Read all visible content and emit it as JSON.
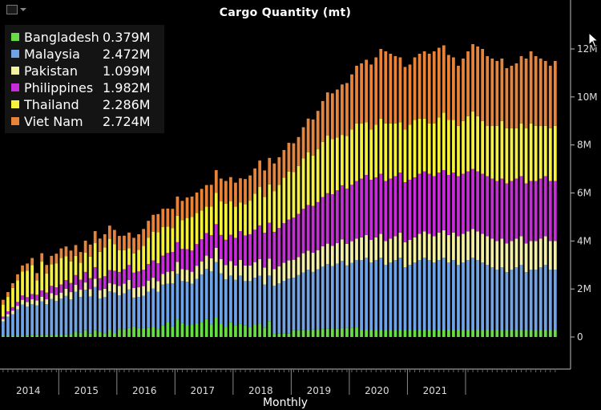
{
  "title": "Cargo Quantity (mt)",
  "icons": {
    "toolbar": "line-chart-icon",
    "dropdown": "chevron-down-icon",
    "cursor": "mouse-pointer-icon"
  },
  "chart_data": {
    "type": "bar",
    "stacked": true,
    "title": "Cargo Quantity (mt)",
    "xlabel": "Monthly",
    "ylabel": "",
    "ylim": [
      -1300000,
      13700000
    ],
    "y_axis_position": "right",
    "y_ticks": [
      0,
      2000000,
      4000000,
      6000000,
      8000000,
      10000000,
      12000000
    ],
    "y_tick_labels": [
      "0",
      "2M",
      "4M",
      "6M",
      "8M",
      "10M",
      "12M"
    ],
    "x_year_labels": [
      "2014",
      "2015",
      "2016",
      "2017",
      "2018",
      "2019",
      "2020",
      "2021"
    ],
    "x_start": "2014-01",
    "legend_position": "top-left",
    "grid": false,
    "series": [
      {
        "name": "Bangladesh",
        "color": "#66dd44",
        "legend_value": "0.379M",
        "values": [
          0.05,
          0.05,
          0.05,
          0.05,
          0.05,
          0.06,
          0.07,
          0.07,
          0.08,
          0.07,
          0.08,
          0.1,
          0.1,
          0.11,
          0.12,
          0.23,
          0.17,
          0.27,
          0.14,
          0.28,
          0.2,
          0.16,
          0.3,
          0.15,
          0.33,
          0.32,
          0.38,
          0.44,
          0.37,
          0.37,
          0.39,
          0.42,
          0.33,
          0.48,
          0.62,
          0.44,
          0.73,
          0.58,
          0.5,
          0.52,
          0.57,
          0.6,
          0.74,
          0.53,
          0.82,
          0.55,
          0.4,
          0.61,
          0.48,
          0.56,
          0.48,
          0.43,
          0.52,
          0.55,
          0.39,
          0.66,
          0.13,
          0.14,
          0.14,
          0.14,
          0.27,
          0.28,
          0.29,
          0.3,
          0.31,
          0.32,
          0.33,
          0.34,
          0.35,
          0.36,
          0.37,
          0.38,
          0.39,
          0.4,
          0.3,
          0.3,
          0.3,
          0.3,
          0.3,
          0.3,
          0.3,
          0.3,
          0.3,
          0.3,
          0.3,
          0.3,
          0.3,
          0.3,
          0.3,
          0.3,
          0.3,
          0.3,
          0.3,
          0.3,
          0.3,
          0.3,
          0.3,
          0.3,
          0.3,
          0.3,
          0.3,
          0.3,
          0.3,
          0.3,
          0.3,
          0.3,
          0.3,
          0.3,
          0.3,
          0.3,
          0.3,
          0.3,
          0.3,
          0.3,
          0.3
        ]
      },
      {
        "name": "Malaysia",
        "color": "#6fa3e6",
        "legend_value": "2.472M",
        "values": [
          0.6,
          0.8,
          0.9,
          1.1,
          1.3,
          1.2,
          1.3,
          1.25,
          1.4,
          1.3,
          1.5,
          1.4,
          1.5,
          1.6,
          1.45,
          1.65,
          1.5,
          1.7,
          1.55,
          1.8,
          1.4,
          1.5,
          1.6,
          1.7,
          1.4,
          1.5,
          1.6,
          1.2,
          1.3,
          1.35,
          1.5,
          1.6,
          1.55,
          1.7,
          1.6,
          1.8,
          1.9,
          1.75,
          1.8,
          1.7,
          1.85,
          2.0,
          2.1,
          2.2,
          2.3,
          2.1,
          2.0,
          1.95,
          1.9,
          2.0,
          1.85,
          1.9,
          1.95,
          2.0,
          1.8,
          1.9,
          2.0,
          2.1,
          2.2,
          2.3,
          2.2,
          2.3,
          2.4,
          2.5,
          2.4,
          2.5,
          2.6,
          2.7,
          2.6,
          2.7,
          2.8,
          2.6,
          2.7,
          2.8,
          2.9,
          3.0,
          2.8,
          2.9,
          3.0,
          2.7,
          2.8,
          2.9,
          3.0,
          2.6,
          2.7,
          2.8,
          2.9,
          3.0,
          2.9,
          2.8,
          2.9,
          3.0,
          2.8,
          2.9,
          2.7,
          2.8,
          2.9,
          3.0,
          2.9,
          2.8,
          2.7,
          2.6,
          2.5,
          2.6,
          2.4,
          2.5,
          2.6,
          2.7,
          2.4,
          2.5,
          2.5,
          2.6,
          2.7,
          2.5,
          2.5
        ]
      },
      {
        "name": "Pakistan",
        "color": "#f5f0a0",
        "legend_value": "1.099M",
        "values": [
          0.1,
          0.1,
          0.15,
          0.15,
          0.2,
          0.2,
          0.2,
          0.2,
          0.2,
          0.2,
          0.25,
          0.25,
          0.25,
          0.3,
          0.3,
          0.3,
          0.3,
          0.3,
          0.3,
          0.35,
          0.35,
          0.35,
          0.35,
          0.35,
          0.4,
          0.4,
          0.4,
          0.4,
          0.4,
          0.4,
          0.45,
          0.45,
          0.45,
          0.45,
          0.5,
          0.5,
          0.5,
          0.5,
          0.5,
          0.5,
          0.55,
          0.55,
          0.55,
          0.55,
          0.6,
          0.6,
          0.6,
          0.6,
          0.6,
          0.65,
          0.65,
          0.65,
          0.65,
          0.7,
          0.7,
          0.7,
          0.7,
          0.7,
          0.75,
          0.75,
          0.75,
          0.75,
          0.8,
          0.8,
          0.8,
          0.8,
          0.85,
          0.85,
          0.85,
          0.85,
          0.9,
          0.9,
          0.9,
          0.9,
          0.95,
          0.95,
          0.95,
          0.95,
          1.0,
          1.0,
          1.0,
          1.0,
          1.05,
          1.05,
          1.05,
          1.05,
          1.1,
          1.1,
          1.1,
          1.1,
          1.15,
          1.15,
          1.15,
          1.15,
          1.2,
          1.2,
          1.2,
          1.2,
          1.2,
          1.2,
          1.2,
          1.2,
          1.2,
          1.2,
          1.2,
          1.2,
          1.2,
          1.2,
          1.2,
          1.2,
          1.2,
          1.2,
          1.2,
          1.2,
          1.2
        ]
      },
      {
        "name": "Philippines",
        "color": "#c82bd8",
        "legend_value": "1.982M",
        "values": [
          0.1,
          0.12,
          0.14,
          0.16,
          0.18,
          0.2,
          0.22,
          0.24,
          0.26,
          0.28,
          0.3,
          0.32,
          0.34,
          0.36,
          0.38,
          0.4,
          0.42,
          0.44,
          0.46,
          0.48,
          0.5,
          0.52,
          0.54,
          0.56,
          0.58,
          0.6,
          0.62,
          0.64,
          0.66,
          0.68,
          0.7,
          0.72,
          0.74,
          0.76,
          0.78,
          0.8,
          0.82,
          0.84,
          0.86,
          0.88,
          0.9,
          0.92,
          0.94,
          0.96,
          0.98,
          1.0,
          1.05,
          1.1,
          1.15,
          1.2,
          1.25,
          1.3,
          1.35,
          1.4,
          1.45,
          1.5,
          1.55,
          1.6,
          1.65,
          1.7,
          1.75,
          1.8,
          1.85,
          1.9,
          1.95,
          2.0,
          2.05,
          2.1,
          2.15,
          2.2,
          2.25,
          2.3,
          2.35,
          2.4,
          2.45,
          2.5,
          2.5,
          2.5,
          2.5,
          2.5,
          2.5,
          2.5,
          2.5,
          2.5,
          2.5,
          2.5,
          2.5,
          2.5,
          2.5,
          2.5,
          2.5,
          2.5,
          2.5,
          2.5,
          2.5,
          2.5,
          2.5,
          2.5,
          2.5,
          2.5,
          2.5,
          2.5,
          2.5,
          2.5,
          2.5,
          2.5,
          2.5,
          2.5,
          2.5,
          2.5,
          2.5,
          2.5,
          2.5,
          2.5,
          2.5
        ]
      },
      {
        "name": "Thailand",
        "color": "#f6f23c",
        "legend_value": "2.286M",
        "values": [
          0.5,
          0.6,
          0.8,
          0.9,
          1.0,
          1.1,
          1.2,
          0.6,
          1.2,
          0.8,
          0.9,
          1.0,
          1.1,
          1.0,
          0.9,
          0.8,
          0.7,
          0.8,
          0.9,
          1.0,
          1.1,
          1.2,
          1.3,
          1.1,
          0.9,
          0.8,
          0.7,
          0.8,
          0.9,
          1.0,
          1.1,
          1.2,
          1.3,
          1.2,
          1.1,
          1.0,
          1.1,
          1.2,
          1.3,
          1.4,
          1.3,
          1.2,
          1.1,
          1.2,
          1.3,
          1.4,
          1.5,
          1.4,
          1.3,
          1.2,
          1.3,
          1.4,
          1.5,
          1.6,
          1.5,
          1.6,
          1.7,
          1.8,
          1.9,
          2.0,
          1.9,
          2.0,
          2.1,
          2.2,
          2.1,
          2.2,
          2.3,
          2.4,
          2.3,
          2.2,
          2.1,
          2.2,
          2.3,
          2.4,
          2.3,
          2.2,
          2.1,
          2.2,
          2.3,
          2.4,
          2.3,
          2.2,
          2.1,
          2.2,
          2.3,
          2.4,
          2.3,
          2.2,
          2.1,
          2.2,
          2.3,
          2.4,
          2.3,
          2.2,
          2.1,
          2.2,
          2.3,
          2.4,
          2.3,
          2.2,
          2.1,
          2.2,
          2.3,
          2.4,
          2.3,
          2.2,
          2.1,
          2.2,
          2.3,
          2.4,
          2.3,
          2.2,
          2.1,
          2.2,
          2.3
        ]
      },
      {
        "name": "Viet Nam",
        "color": "#e8843a",
        "legend_value": "2.724M",
        "values": [
          0.2,
          0.2,
          0.2,
          0.25,
          0.25,
          0.3,
          0.3,
          0.3,
          0.35,
          0.35,
          0.35,
          0.4,
          0.4,
          0.4,
          0.45,
          0.45,
          0.45,
          0.5,
          0.5,
          0.5,
          0.55,
          0.55,
          0.55,
          0.6,
          0.6,
          0.6,
          0.65,
          0.65,
          0.65,
          0.7,
          0.7,
          0.7,
          0.75,
          0.75,
          0.75,
          0.8,
          0.8,
          0.8,
          0.85,
          0.85,
          0.85,
          0.9,
          0.9,
          0.9,
          0.95,
          0.95,
          0.95,
          1.0,
          1.0,
          1.0,
          1.05,
          1.05,
          1.05,
          1.1,
          1.1,
          1.1,
          1.15,
          1.15,
          1.15,
          1.2,
          1.2,
          1.2,
          1.3,
          1.4,
          1.5,
          1.6,
          1.7,
          1.8,
          1.9,
          2.0,
          2.1,
          2.2,
          2.3,
          2.4,
          2.5,
          2.6,
          2.7,
          2.8,
          2.9,
          3.0,
          2.9,
          2.8,
          2.7,
          2.6,
          2.5,
          2.6,
          2.7,
          2.8,
          2.9,
          3.0,
          2.9,
          2.8,
          2.7,
          2.6,
          2.5,
          2.6,
          2.7,
          2.8,
          2.9,
          3.0,
          2.9,
          2.8,
          2.7,
          2.6,
          2.5,
          2.6,
          2.7,
          2.8,
          2.9,
          3.0,
          2.9,
          2.8,
          2.7,
          2.6,
          2.7
        ]
      }
    ]
  }
}
